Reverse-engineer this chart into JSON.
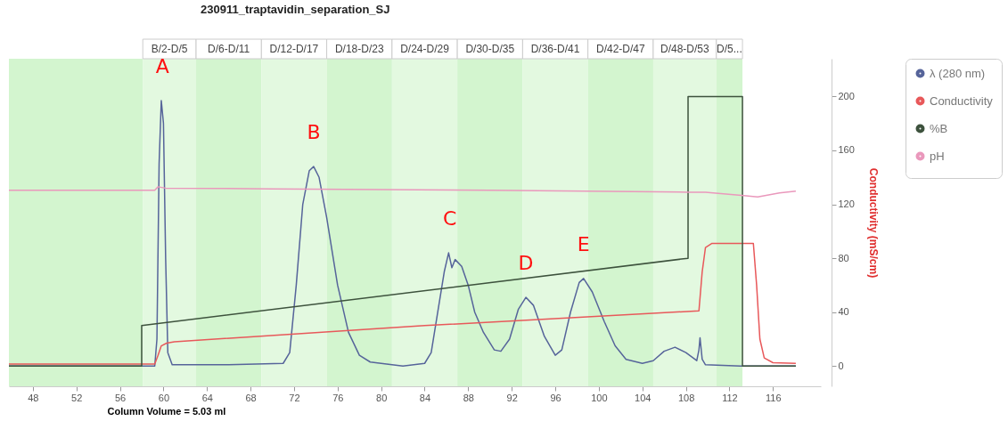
{
  "chart_data": {
    "type": "line",
    "title": "230911_traptavidin_separation_SJ",
    "xlabel": "Column Volume  = 5.03 ml",
    "ylabel": "Conductivity (mS/cm)",
    "xlim": [
      45.8,
      120.4
    ],
    "xticks": [
      48,
      52,
      56,
      60,
      64,
      68,
      72,
      76,
      80,
      84,
      88,
      92,
      96,
      100,
      104,
      108,
      112,
      116
    ],
    "ylim": [
      -15,
      228
    ],
    "yticks": [
      0,
      40,
      80,
      120,
      160,
      200
    ],
    "legend": "top right",
    "series": [
      {
        "name": "λ (280 nm)",
        "color": "#56649a",
        "x": [
          45.8,
          59.2,
          59.4,
          59.6,
          59.8,
          60.0,
          60.2,
          60.4,
          60.8,
          66,
          71,
          71.6,
          72.2,
          72.8,
          73.4,
          73.8,
          74.3,
          75,
          76,
          77,
          78,
          79,
          82,
          84,
          84.6,
          85.2,
          85.8,
          86.2,
          86.5,
          86.8,
          87.4,
          88,
          88.6,
          89.4,
          90.4,
          91,
          91.8,
          92.6,
          93.3,
          94,
          95,
          96,
          96.6,
          97.4,
          98.2,
          98.6,
          99.4,
          100.5,
          101.5,
          102.5,
          104,
          105,
          106,
          107,
          108,
          109,
          109.2,
          109.3,
          109.5,
          109.8,
          113,
          118.1
        ],
        "values": [
          0,
          0,
          20,
          150,
          197,
          180,
          80,
          10,
          1,
          1,
          2,
          10,
          60,
          120,
          145,
          148,
          140,
          110,
          60,
          25,
          8,
          3,
          0,
          2,
          10,
          40,
          70,
          84,
          73,
          79,
          74,
          60,
          40,
          25,
          12,
          11,
          20,
          42,
          51,
          45,
          22,
          8,
          12,
          40,
          62,
          65,
          55,
          33,
          15,
          5,
          2,
          4,
          11,
          14,
          10,
          4,
          12,
          21,
          5,
          1,
          0,
          0
        ]
      },
      {
        "name": "Conductivity",
        "color": "#e8585a",
        "x": [
          45.8,
          59.2,
          59.5,
          59.8,
          60.3,
          61,
          84,
          109.2,
          109.5,
          109.8,
          110.4,
          114.2,
          114.5,
          114.8,
          115.2,
          116,
          118.1
        ],
        "values": [
          1.5,
          1.5,
          8,
          15,
          17,
          18,
          30,
          41,
          70,
          88,
          91,
          91,
          60,
          20,
          6,
          2.5,
          2
        ]
      },
      {
        "name": "%B",
        "color": "#3d523d",
        "x": [
          45.8,
          58,
          58,
          108.2,
          108.2,
          113.2,
          113.2,
          118.1
        ],
        "values": [
          0,
          0,
          30,
          80,
          200,
          200,
          0,
          0
        ]
      },
      {
        "name": "pH",
        "color": "#ea98bc",
        "x": [
          45.8,
          59.2,
          59.5,
          60.2,
          70,
          90,
          108.2,
          109.8,
          113.1,
          114.6,
          116.6,
          118.1
        ],
        "values": [
          130.5,
          130.5,
          133,
          132,
          131.5,
          130.5,
          129,
          129,
          126.6,
          125.5,
          128.5,
          129.7
        ]
      }
    ],
    "bands": [
      {
        "axis": "x",
        "from": 45.8,
        "to": 58.1,
        "label": null,
        "color": "#d3f5cf"
      },
      {
        "axis": "x",
        "from": 58.1,
        "to": 63,
        "label": "B/2-D/5",
        "color": "#e3f9e0"
      },
      {
        "axis": "x",
        "from": 63,
        "to": 69,
        "label": "D/6-D/11",
        "color": "#d3f5cf"
      },
      {
        "axis": "x",
        "from": 69,
        "to": 75,
        "label": "D/12-D/17",
        "color": "#e3f9e0"
      },
      {
        "axis": "x",
        "from": 75,
        "to": 81,
        "label": "D/18-D/23",
        "color": "#d3f5cf"
      },
      {
        "axis": "x",
        "from": 81,
        "to": 87,
        "label": "D/24-D/29",
        "color": "#e3f9e0"
      },
      {
        "axis": "x",
        "from": 87,
        "to": 93,
        "label": "D/30-D/35",
        "color": "#d3f5cf"
      },
      {
        "axis": "x",
        "from": 93,
        "to": 99,
        "label": "D/36-D/41",
        "color": "#e3f9e0"
      },
      {
        "axis": "x",
        "from": 99,
        "to": 105,
        "label": "D/42-D/47",
        "color": "#d3f5cf"
      },
      {
        "axis": "x",
        "from": 105,
        "to": 110.8,
        "label": "D/48-D/53",
        "color": "#e3f9e0"
      },
      {
        "axis": "x",
        "from": 110.8,
        "to": 113.2,
        "label": "D/5...",
        "color": "#d3f5cf"
      }
    ],
    "annotations": [
      {
        "text": "A",
        "x": 59.9,
        "y": 197
      },
      {
        "text": "B",
        "x": 73.8,
        "y": 148
      },
      {
        "text": "C",
        "x": 86.3,
        "y": 84
      },
      {
        "text": "D",
        "x": 93.3,
        "y": 51
      },
      {
        "text": "E",
        "x": 98.6,
        "y": 65
      }
    ]
  }
}
